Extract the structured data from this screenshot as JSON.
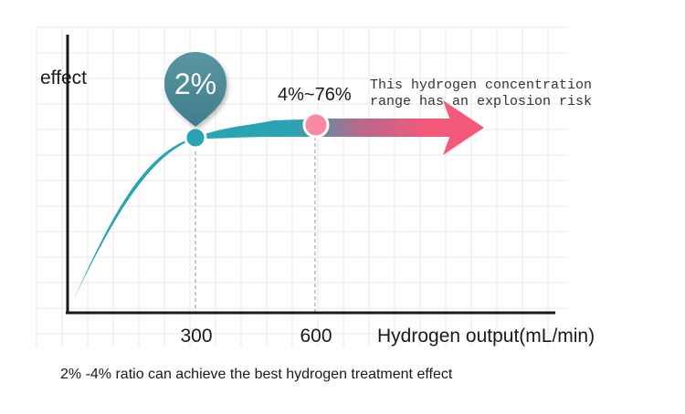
{
  "chart_data": {
    "type": "area",
    "ylabel": "effect",
    "xlabel": "Hydrogen output(mL/min)",
    "x_ticks": [
      "300",
      "600"
    ],
    "callout_percent": "2%",
    "range_label": "4%~76%",
    "range_note_line1": "This hydrogen concentration",
    "range_note_line2": "range has an explosion risk",
    "caption": "2% -4% ratio can achieve the best hydrogen treatment effect",
    "markers": [
      {
        "x": 300,
        "label": "2%"
      },
      {
        "x": 600,
        "label": "4%~76%"
      }
    ],
    "grid": true,
    "colors": {
      "curve": "#2aa3b2",
      "pin": "#4a8b98",
      "danger": "#f4587a",
      "axis": "#1a1a1a",
      "grid": "#eaeaea",
      "guide": "#aaaaaa"
    }
  }
}
